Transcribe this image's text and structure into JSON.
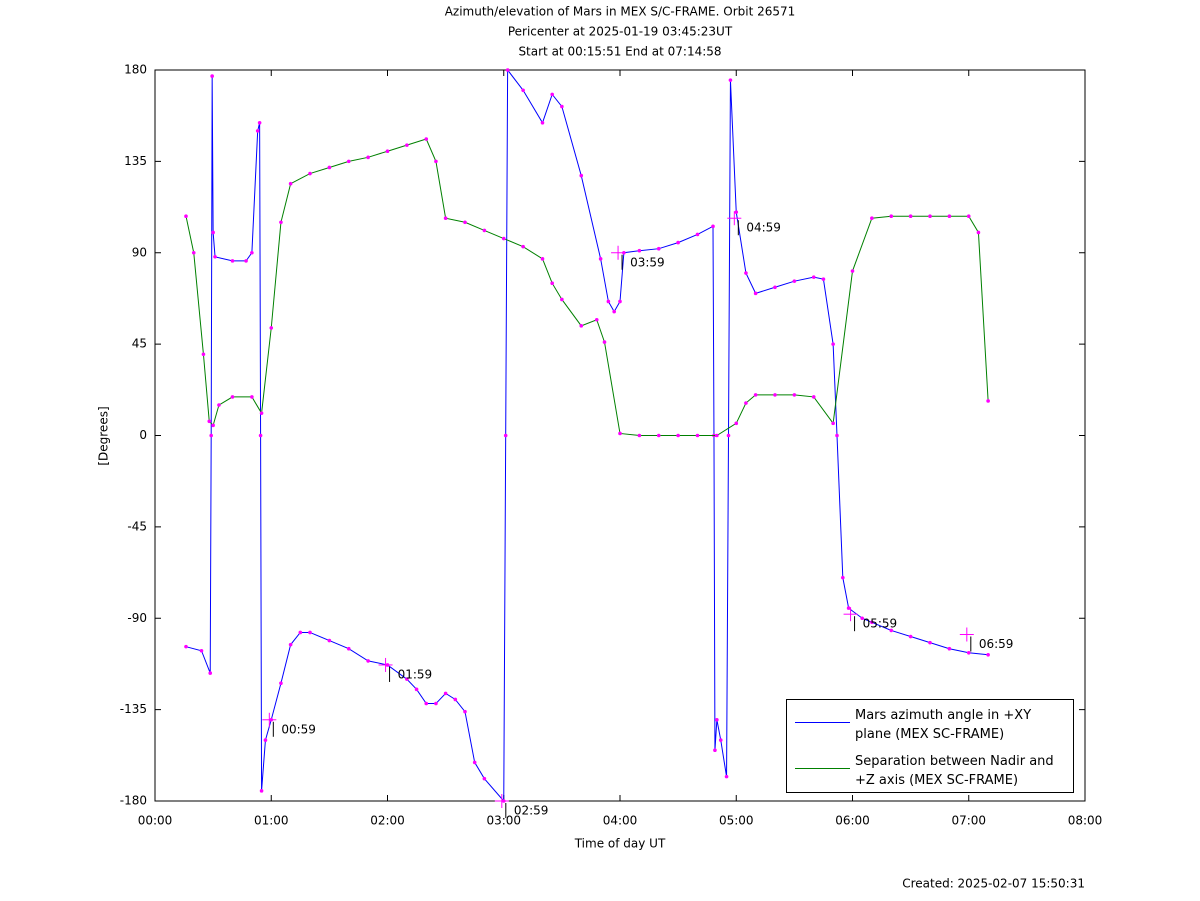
{
  "chart_data": {
    "type": "line",
    "title": "Azimuth/elevation of Mars in MEX S/C-FRAME.  Orbit 26571",
    "subtitle": "Pericenter at 2025-01-19 03:45:23UT",
    "subtitle2": "Start at 00:15:51 End at 07:14:58",
    "xlabel": "Time of day UT",
    "ylabel": "[Degrees]",
    "footer": "Created: 2025-02-07 15:50:31",
    "xlim": [
      0,
      480
    ],
    "xticks": [
      {
        "value": 0,
        "label": "00:00"
      },
      {
        "value": 60,
        "label": "01:00"
      },
      {
        "value": 120,
        "label": "02:00"
      },
      {
        "value": 180,
        "label": "03:00"
      },
      {
        "value": 240,
        "label": "04:00"
      },
      {
        "value": 300,
        "label": "05:00"
      },
      {
        "value": 360,
        "label": "06:00"
      },
      {
        "value": 420,
        "label": "07:00"
      },
      {
        "value": 480,
        "label": "08:00"
      }
    ],
    "ylim": [
      -180,
      180
    ],
    "yticks": [
      -180,
      -135,
      -90,
      -45,
      0,
      45,
      90,
      135,
      180
    ],
    "legend": "lower right",
    "marker_color": "#ff00ff",
    "series": [
      {
        "name": "Mars azimuth angle in +XY plane (MEX SC-FRAME)",
        "color": "#0000ff",
        "x": [
          16,
          24,
          28.5,
          29,
          29.5,
          30,
          31,
          40,
          47,
          50,
          53,
          54,
          54.5,
          55,
          57,
          60,
          65,
          70,
          75,
          80,
          90,
          100,
          110,
          120,
          130,
          135,
          140,
          145,
          150,
          155,
          160,
          165,
          170,
          180,
          181,
          182,
          190,
          200,
          205,
          210,
          220,
          230,
          234,
          237,
          240,
          242,
          250,
          260,
          270,
          280,
          288,
          288.5,
          289,
          290,
          292,
          295,
          296,
          297,
          300,
          305,
          310,
          320,
          330,
          340,
          345,
          350,
          352,
          355,
          358,
          365,
          370,
          380,
          390,
          400,
          410,
          420,
          430
        ],
        "values": [
          -104,
          -106,
          -117,
          0,
          177,
          100,
          88,
          86,
          86,
          90,
          150,
          154,
          0,
          -175,
          -150,
          -140,
          -122,
          -103,
          -97,
          -97,
          -101,
          -105,
          -111,
          -113,
          -120,
          -125,
          -132,
          -132,
          -127,
          -130,
          -136,
          -161,
          -169,
          -180,
          0,
          180,
          170,
          154,
          168,
          162,
          128,
          87,
          66,
          61,
          66,
          90,
          91,
          92,
          95,
          99,
          103,
          0,
          -155,
          -140,
          -150,
          -168,
          0,
          175,
          110,
          80,
          70,
          73,
          76,
          78,
          77,
          45,
          0,
          -70,
          -85,
          -90,
          -92,
          -96,
          -99,
          -102,
          -105,
          -107,
          -108
        ]
      },
      {
        "name": "Separation between Nadir and +Z axis (MEX SC-FRAME)",
        "color": "#008000",
        "x": [
          16,
          20,
          25,
          28,
          30,
          33,
          40,
          50,
          55,
          60,
          65,
          70,
          80,
          90,
          100,
          110,
          120,
          130,
          140,
          145,
          150,
          160,
          170,
          180,
          190,
          200,
          205,
          210,
          220,
          228,
          232,
          240,
          250,
          260,
          270,
          280,
          290,
          300,
          305,
          310,
          320,
          330,
          340,
          350,
          360,
          370,
          380,
          390,
          400,
          410,
          420,
          425,
          430
        ],
        "values": [
          108,
          90,
          40,
          7,
          5,
          15,
          19,
          19,
          11,
          53,
          105,
          124,
          129,
          132,
          135,
          137,
          140,
          143,
          146,
          135,
          107,
          105,
          101,
          97,
          93,
          87,
          75,
          67,
          54,
          57,
          46,
          1,
          0,
          0,
          0,
          0,
          0,
          6,
          16,
          20,
          20,
          20,
          19,
          6,
          81,
          107,
          108,
          108,
          108,
          108,
          108,
          100,
          17
        ]
      }
    ],
    "annotations": [
      {
        "text": "00:59",
        "x": 59,
        "y": -140
      },
      {
        "text": "01:59",
        "x": 119,
        "y": -113
      },
      {
        "text": "02:59",
        "x": 179,
        "y": -180
      },
      {
        "text": "03:59",
        "x": 239,
        "y": 90
      },
      {
        "text": "04:59",
        "x": 299,
        "y": 107
      },
      {
        "text": "05:59",
        "x": 359,
        "y": -88
      },
      {
        "text": "06:59",
        "x": 419,
        "y": -98
      }
    ]
  }
}
